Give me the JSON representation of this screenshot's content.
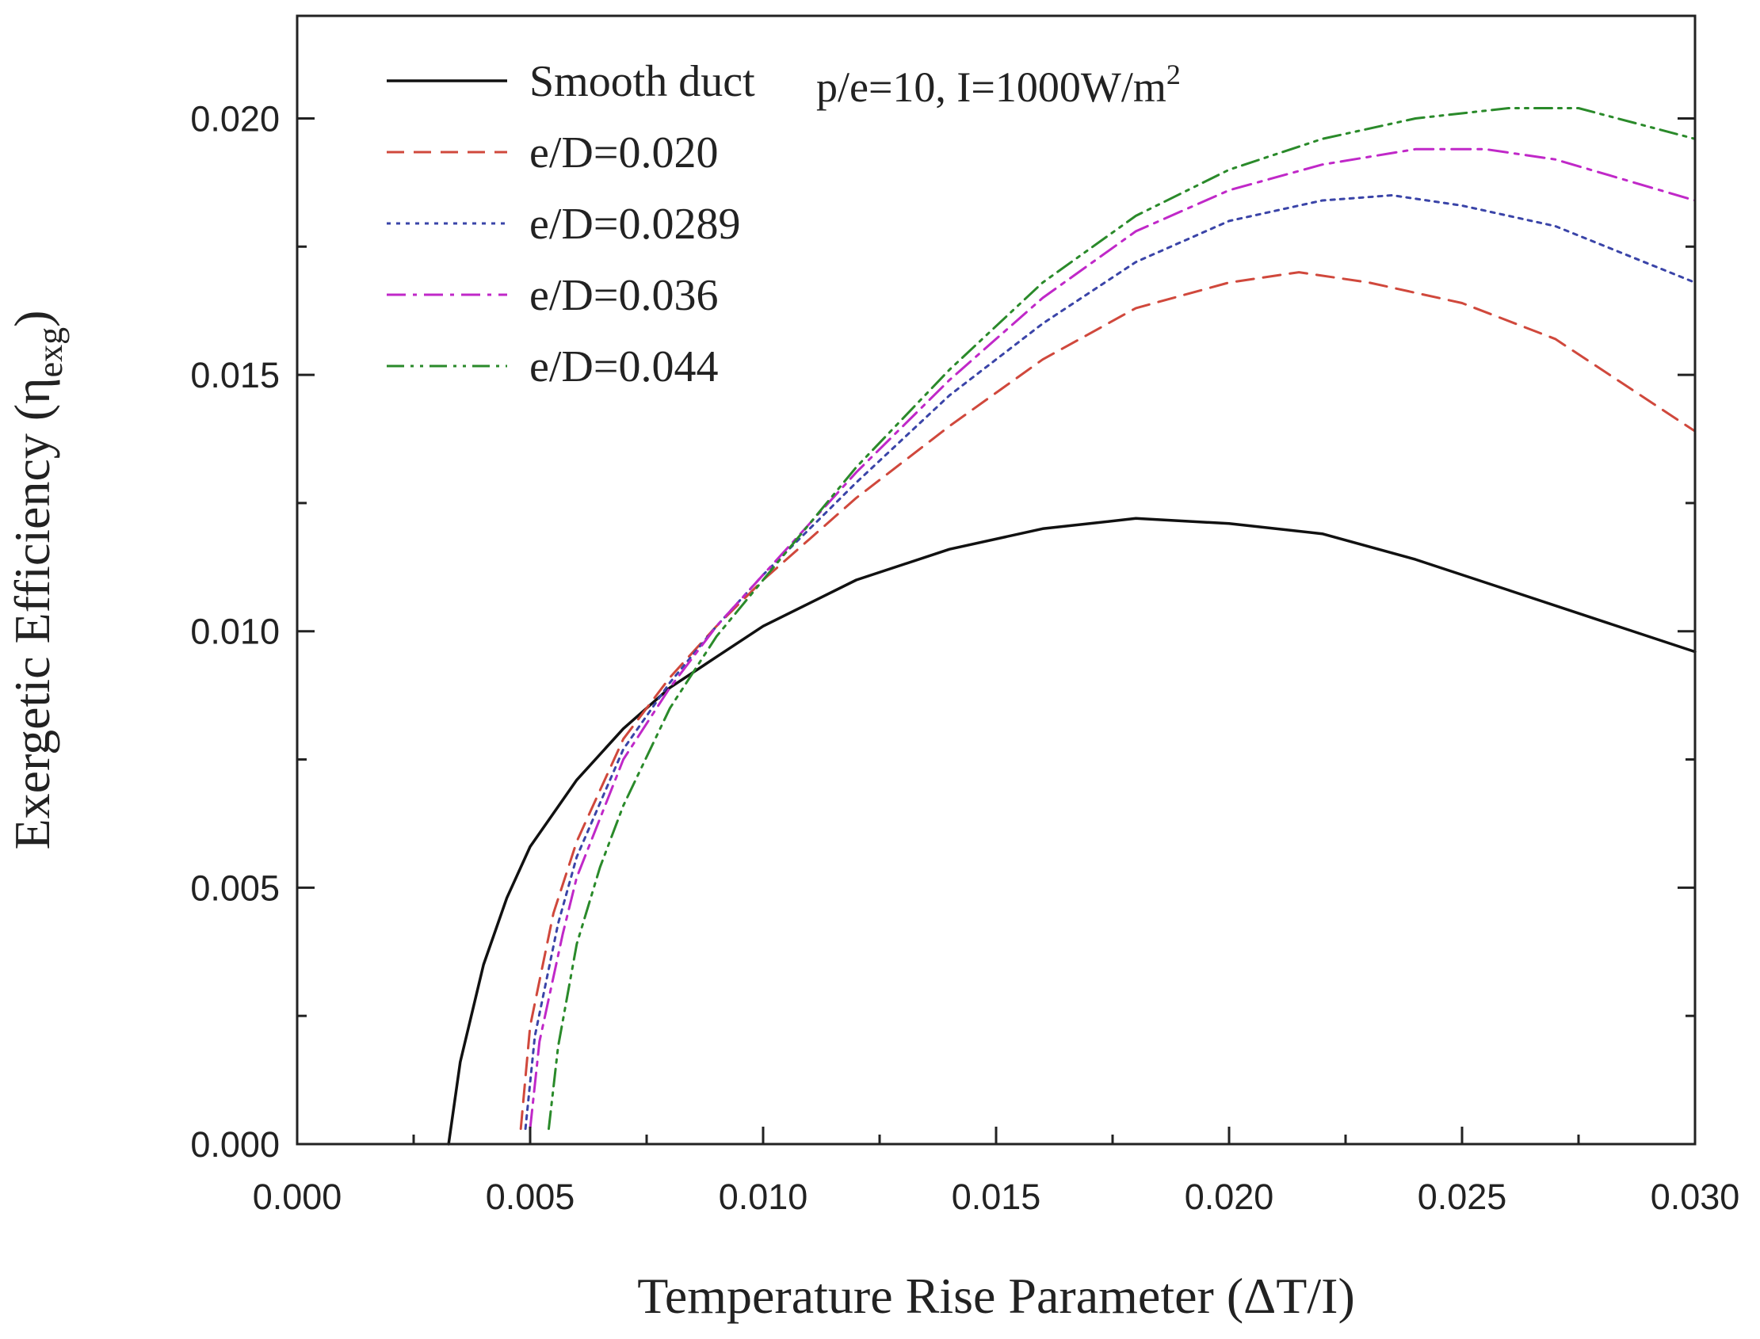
{
  "chart_data": {
    "type": "line",
    "title": "",
    "xlabel": "Temperature Rise Parameter (ΔT/I)",
    "ylabel": "Exergetic Efficiency (η",
    "ylabel_subscript": "exg",
    "ylabel_close": ")",
    "xlim": [
      0.0,
      0.03
    ],
    "ylim": [
      0.0,
      0.022
    ],
    "xticks": [
      0.0,
      0.005,
      0.01,
      0.015,
      0.02,
      0.025,
      0.03
    ],
    "xtick_labels": [
      "0.000",
      "0.005",
      "0.010",
      "0.015",
      "0.020",
      "0.025",
      "0.030"
    ],
    "yticks": [
      0.0,
      0.005,
      0.01,
      0.015,
      0.02
    ],
    "ytick_labels": [
      "0.000",
      "0.005",
      "0.010",
      "0.015",
      "0.020"
    ],
    "grid": false,
    "legend_position": "top-left",
    "annotation": {
      "text_main": "p/e=10, I=1000W/m",
      "text_sup": "2",
      "position": "top-center"
    },
    "series": [
      {
        "name": "Smooth duct",
        "color": "#111111",
        "dash": "solid",
        "points": [
          [
            0.00325,
            0.0
          ],
          [
            0.0035,
            0.0016
          ],
          [
            0.004,
            0.0035
          ],
          [
            0.0045,
            0.0048
          ],
          [
            0.005,
            0.0058
          ],
          [
            0.006,
            0.0071
          ],
          [
            0.007,
            0.0081
          ],
          [
            0.008,
            0.0089
          ],
          [
            0.009,
            0.0095
          ],
          [
            0.01,
            0.0101
          ],
          [
            0.012,
            0.011
          ],
          [
            0.014,
            0.0116
          ],
          [
            0.016,
            0.012
          ],
          [
            0.018,
            0.0122
          ],
          [
            0.02,
            0.0121
          ],
          [
            0.022,
            0.0119
          ],
          [
            0.024,
            0.0114
          ],
          [
            0.026,
            0.0108
          ],
          [
            0.028,
            0.0102
          ],
          [
            0.03,
            0.0096
          ]
        ]
      },
      {
        "name": "e/D=0.020",
        "color": "#d0483c",
        "dash": "dashed",
        "points": [
          [
            0.0048,
            0.0003
          ],
          [
            0.005,
            0.0023
          ],
          [
            0.0055,
            0.0045
          ],
          [
            0.006,
            0.0059
          ],
          [
            0.007,
            0.0079
          ],
          [
            0.008,
            0.0091
          ],
          [
            0.009,
            0.0101
          ],
          [
            0.01,
            0.011
          ],
          [
            0.011,
            0.0118
          ],
          [
            0.012,
            0.0126
          ],
          [
            0.014,
            0.014
          ],
          [
            0.016,
            0.0153
          ],
          [
            0.018,
            0.0163
          ],
          [
            0.02,
            0.0168
          ],
          [
            0.0215,
            0.017
          ],
          [
            0.023,
            0.0168
          ],
          [
            0.025,
            0.0164
          ],
          [
            0.027,
            0.0157
          ],
          [
            0.03,
            0.0139
          ]
        ]
      },
      {
        "name": "e/D=0.0289",
        "color": "#3a44a8",
        "dash": "dotted",
        "points": [
          [
            0.0049,
            0.0003
          ],
          [
            0.0051,
            0.0021
          ],
          [
            0.0056,
            0.0043
          ],
          [
            0.006,
            0.0056
          ],
          [
            0.007,
            0.0077
          ],
          [
            0.008,
            0.009
          ],
          [
            0.009,
            0.0101
          ],
          [
            0.01,
            0.0111
          ],
          [
            0.011,
            0.012
          ],
          [
            0.012,
            0.0129
          ],
          [
            0.014,
            0.0146
          ],
          [
            0.016,
            0.016
          ],
          [
            0.018,
            0.0172
          ],
          [
            0.02,
            0.018
          ],
          [
            0.022,
            0.0184
          ],
          [
            0.0235,
            0.0185
          ],
          [
            0.025,
            0.0183
          ],
          [
            0.027,
            0.0179
          ],
          [
            0.03,
            0.0168
          ]
        ]
      },
      {
        "name": "e/D=0.036",
        "color": "#c028c8",
        "dash": "dashdot",
        "points": [
          [
            0.005,
            0.0003
          ],
          [
            0.0052,
            0.002
          ],
          [
            0.0057,
            0.0041
          ],
          [
            0.006,
            0.0052
          ],
          [
            0.007,
            0.0075
          ],
          [
            0.008,
            0.0089
          ],
          [
            0.009,
            0.0101
          ],
          [
            0.01,
            0.0111
          ],
          [
            0.011,
            0.0121
          ],
          [
            0.012,
            0.0131
          ],
          [
            0.014,
            0.0149
          ],
          [
            0.016,
            0.0165
          ],
          [
            0.018,
            0.0178
          ],
          [
            0.02,
            0.0186
          ],
          [
            0.022,
            0.0191
          ],
          [
            0.024,
            0.0194
          ],
          [
            0.0255,
            0.0194
          ],
          [
            0.027,
            0.0192
          ],
          [
            0.03,
            0.0184
          ]
        ]
      },
      {
        "name": "e/D=0.044",
        "color": "#2a8a2a",
        "dash": "dashdotdot",
        "points": [
          [
            0.0054,
            0.0003
          ],
          [
            0.0056,
            0.0019
          ],
          [
            0.006,
            0.0039
          ],
          [
            0.0065,
            0.0054
          ],
          [
            0.007,
            0.0066
          ],
          [
            0.008,
            0.0085
          ],
          [
            0.009,
            0.0099
          ],
          [
            0.01,
            0.011
          ],
          [
            0.011,
            0.0121
          ],
          [
            0.012,
            0.0132
          ],
          [
            0.014,
            0.0151
          ],
          [
            0.016,
            0.0168
          ],
          [
            0.018,
            0.0181
          ],
          [
            0.02,
            0.019
          ],
          [
            0.022,
            0.0196
          ],
          [
            0.024,
            0.02
          ],
          [
            0.026,
            0.0202
          ],
          [
            0.0275,
            0.0202
          ],
          [
            0.03,
            0.0196
          ]
        ]
      }
    ]
  }
}
